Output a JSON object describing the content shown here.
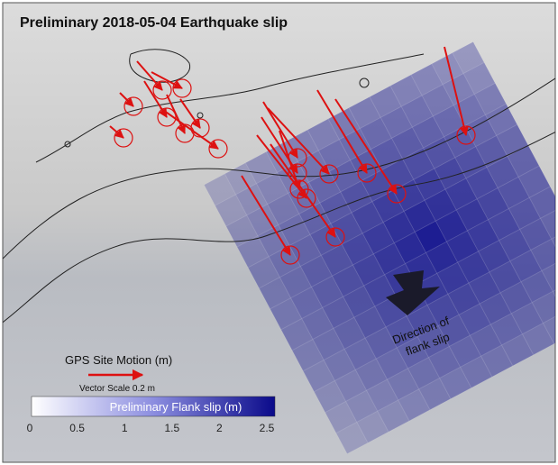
{
  "title": "Preliminary 2018-05-04 Earthquake slip",
  "legend": {
    "gps_label": "GPS Site Motion (m)",
    "vector_scale": "Vector Scale 0.2 m"
  },
  "colorbar": {
    "label": "Preliminary Flank slip (m)",
    "ticks": [
      0,
      0.5,
      1,
      1.5,
      2,
      2.5
    ],
    "range": [
      0,
      2.5
    ]
  },
  "annotation": {
    "lines": [
      "Direction of",
      "flank slip"
    ]
  }
}
